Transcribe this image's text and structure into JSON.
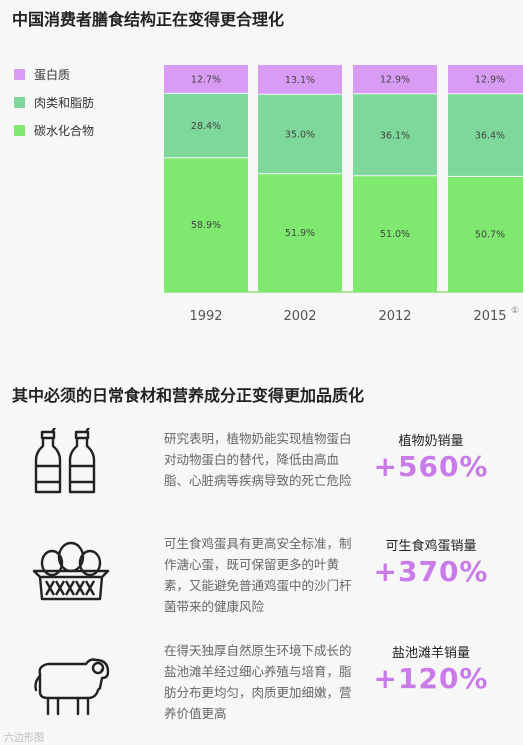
{
  "title1": "中国消费者膳食结构正在变得更合理化",
  "title2": "其中必须的日常食材和营养成分正变得更加品质化",
  "legend": [
    {
      "label": "蛋白质",
      "color": "#d89cf5"
    },
    {
      "label": "肉类和脂肪",
      "color": "#7ed89b"
    },
    {
      "label": "碳水化合物",
      "color": "#7ee86f"
    }
  ],
  "chart_data": {
    "type": "bar",
    "stacked": true,
    "categories": [
      "1992",
      "2002",
      "2012",
      "2015"
    ],
    "footnote_marker": "①",
    "ylim": [
      0,
      100
    ],
    "series": [
      {
        "name": "碳水化合物",
        "color": "#7ee86f",
        "values": [
          58.9,
          51.9,
          51.0,
          50.7
        ],
        "labels": [
          "58.9%",
          "51.9%",
          "51.0%",
          "50.7%"
        ]
      },
      {
        "name": "肉类和脂肪",
        "color": "#7ed89b",
        "values": [
          28.4,
          35.0,
          36.1,
          36.4
        ],
        "labels": [
          "28.4%",
          "35.0%",
          "36.1%",
          "36.4%"
        ]
      },
      {
        "name": "蛋白质",
        "color": "#d89cf5",
        "values": [
          12.7,
          13.1,
          12.9,
          12.9
        ],
        "labels": [
          "12.7%",
          "13.1%",
          "12.9%",
          "12.9%"
        ]
      }
    ]
  },
  "features": [
    {
      "icon": "milk-bottles-icon",
      "desc": "研究表明，植物奶能实现植物蛋白对动物蛋白的替代，降低由高血脂、心脏病等疾病导致的死亡危险",
      "label": "植物奶销量",
      "value": "+560%"
    },
    {
      "icon": "egg-basket-icon",
      "desc": "可生食鸡蛋具有更高安全标准，制作溏心蛋，既可保留更多的叶黄素，又能避免普通鸡蛋中的沙门杆菌带来的健康风险",
      "label": "可生食鸡蛋销量",
      "value": "+370%"
    },
    {
      "icon": "sheep-icon",
      "desc": "在得天独厚自然原生环境下成长的盐池滩羊经过细心养殖与培育，脂肪分布更均匀，肉质更加细嫩，营养价值更高",
      "label": "盐池滩羊销量",
      "value": "+120%"
    }
  ],
  "watermark": "六边形图"
}
